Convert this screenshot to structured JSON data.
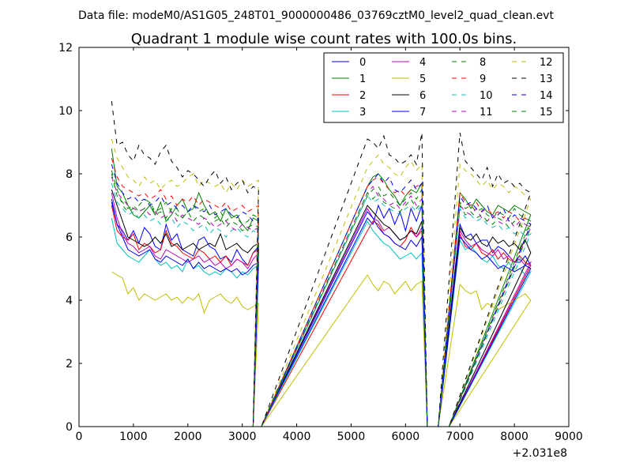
{
  "header": {
    "data_file": "Data file: modeM0/AS1G05_248T01_9000000486_03769cztM0_level2_quad_clean.evt"
  },
  "chart_data": {
    "type": "line",
    "title": "Quadrant 1 module wise count rates with 100.0s bins.",
    "xlabel": "",
    "ylabel": "",
    "x_offset_label": "+2.031e8",
    "xlim": [
      0,
      9000
    ],
    "ylim": [
      0,
      12
    ],
    "x_ticks": [
      0,
      1000,
      2000,
      3000,
      4000,
      5000,
      6000,
      7000,
      8000,
      9000
    ],
    "y_ticks": [
      0,
      2,
      4,
      6,
      8,
      10,
      12
    ],
    "grid": false,
    "legend_position": "top-right",
    "legend_columns": 4,
    "segments": [
      {
        "x_start": 600,
        "n": 28
      },
      {
        "x_start": 5300,
        "n": 11
      },
      {
        "x_start": 7000,
        "n": 14
      }
    ],
    "x_gaps": [
      [
        3200,
        3300,
        3350
      ],
      [
        6400,
        6500,
        6600
      ],
      [
        6800,
        6900
      ]
    ],
    "series": [
      {
        "name": "0",
        "color": "#0000ff",
        "dash": "solid",
        "seg1": [
          7.2,
          6.4,
          6.2,
          5.9,
          6.2,
          5.8,
          6.3,
          6.1,
          5.7,
          5.6,
          6.4,
          5.9,
          6.1,
          5.6,
          5.5,
          5.4,
          5.9,
          6.0,
          5.7,
          5.6,
          5.3,
          5.4,
          5.2,
          5.6,
          5.3,
          5.1,
          5.5,
          5.7
        ],
        "seg2": [
          6.6,
          6.4,
          7.0,
          6.6,
          6.9,
          6.4,
          6.8,
          6.2,
          6.9,
          6.5,
          7.0
        ],
        "seg3": [
          6.4,
          6.0,
          6.1,
          5.8,
          5.9,
          5.9,
          5.5,
          5.7,
          5.6,
          5.4,
          5.2,
          5.2,
          5.4,
          5.1
        ]
      },
      {
        "name": "1",
        "color": "#008000",
        "dash": "solid",
        "seg1": [
          8.8,
          7.6,
          7.4,
          7.0,
          6.7,
          6.6,
          6.8,
          7.0,
          6.7,
          7.1,
          6.5,
          6.7,
          7.0,
          7.2,
          6.8,
          6.9,
          7.4,
          7.0,
          6.7,
          6.8,
          6.5,
          6.9,
          6.6,
          6.7,
          6.4,
          6.2,
          6.6,
          6.5
        ],
        "seg2": [
          7.6,
          7.9,
          8.0,
          7.8,
          7.5,
          7.3,
          7.0,
          7.3,
          7.5,
          7.4,
          7.7
        ],
        "seg3": [
          7.4,
          7.2,
          6.9,
          7.2,
          7.0,
          6.8,
          6.7,
          7.0,
          6.9,
          6.8,
          7.0,
          6.9,
          6.8,
          6.7
        ]
      },
      {
        "name": "2",
        "color": "#ff0000",
        "dash": "solid",
        "seg1": [
          7.0,
          6.2,
          6.0,
          5.9,
          6.1,
          5.6,
          5.8,
          5.7,
          5.5,
          5.6,
          6.2,
          5.8,
          5.7,
          5.5,
          5.4,
          5.3,
          5.6,
          5.5,
          5.3,
          5.4,
          5.2,
          5.4,
          5.1,
          5.3,
          5.2,
          5.1,
          5.5,
          5.6
        ],
        "seg2": [
          6.2,
          6.5,
          6.4,
          6.1,
          6.0,
          5.8,
          5.7,
          5.9,
          6.3,
          6.0,
          6.2
        ],
        "seg3": [
          6.1,
          5.7,
          5.6,
          5.8,
          5.5,
          5.4,
          5.6,
          5.3,
          5.5,
          5.3,
          5.2,
          5.4,
          5.2,
          5.1
        ]
      },
      {
        "name": "3",
        "color": "#00bfbf",
        "dash": "solid",
        "seg1": [
          6.6,
          5.8,
          5.6,
          5.4,
          5.3,
          5.2,
          5.4,
          5.6,
          5.3,
          5.1,
          5.2,
          5.0,
          5.1,
          4.9,
          5.3,
          5.0,
          5.1,
          4.9,
          4.8,
          4.9,
          4.8,
          5.0,
          4.9,
          4.7,
          4.9,
          4.8,
          5.0,
          5.1
        ],
        "seg2": [
          6.5,
          6.2,
          6.0,
          5.8,
          5.7,
          5.5,
          5.3,
          5.4,
          5.5,
          5.3,
          5.5
        ],
        "seg3": [
          5.9,
          5.6,
          5.7,
          5.5,
          5.3,
          5.2,
          5.4,
          5.1,
          5.0,
          5.2,
          4.9,
          5.0,
          4.8,
          4.9
        ]
      },
      {
        "name": "4",
        "color": "#bf00bf",
        "dash": "solid",
        "seg1": [
          7.4,
          6.6,
          6.1,
          5.8,
          5.7,
          5.5,
          5.6,
          5.7,
          5.4,
          5.3,
          5.6,
          5.5,
          5.4,
          5.3,
          5.2,
          5.3,
          5.4,
          5.2,
          5.3,
          5.1,
          5.2,
          5.0,
          5.1,
          5.3,
          5.2,
          5.0,
          5.3,
          5.5
        ],
        "seg2": [
          6.9,
          6.6,
          6.5,
          6.2,
          6.3,
          6.1,
          5.9,
          6.0,
          6.2,
          6.0,
          6.3
        ],
        "seg3": [
          6.2,
          5.9,
          5.7,
          5.8,
          5.6,
          5.5,
          5.4,
          5.6,
          5.3,
          5.4,
          5.2,
          5.3,
          5.1,
          5.2
        ]
      },
      {
        "name": "5",
        "color": "#bfbf00",
        "dash": "solid",
        "seg1": [
          4.9,
          4.8,
          4.7,
          4.2,
          4.4,
          4.0,
          4.2,
          4.1,
          4.0,
          4.1,
          4.2,
          4.0,
          4.1,
          3.9,
          4.1,
          4.0,
          4.2,
          3.6,
          4.0,
          4.1,
          4.2,
          4.0,
          3.9,
          4.1,
          3.8,
          3.7,
          3.8,
          3.9
        ],
        "seg2": [
          4.8,
          4.5,
          4.3,
          4.6,
          4.5,
          4.2,
          4.4,
          4.6,
          4.3,
          4.5,
          4.6
        ],
        "seg3": [
          4.5,
          4.3,
          4.2,
          4.3,
          3.7,
          3.9,
          3.8,
          3.7,
          3.8,
          3.9,
          4.0,
          4.1,
          4.2,
          4.0
        ]
      },
      {
        "name": "6",
        "color": "#000000",
        "dash": "solid",
        "seg1": [
          7.5,
          7.0,
          6.5,
          6.0,
          5.9,
          5.8,
          5.7,
          5.8,
          6.0,
          5.8,
          6.1,
          5.7,
          5.8,
          5.6,
          5.7,
          5.8,
          5.6,
          5.7,
          5.8,
          5.7,
          6.1,
          5.6,
          5.7,
          5.8,
          5.6,
          5.5,
          5.7,
          5.8
        ],
        "seg2": [
          7.0,
          6.8,
          6.6,
          6.4,
          6.3,
          6.1,
          5.9,
          6.0,
          6.2,
          6.1,
          6.5
        ],
        "seg3": [
          6.3,
          6.0,
          5.9,
          6.1,
          5.8,
          5.7,
          6.0,
          5.8,
          5.9,
          5.7,
          5.8,
          5.6,
          5.9,
          5.5
        ]
      },
      {
        "name": "7",
        "color": "#0000ff",
        "dash": "solid",
        "seg1": [
          7.1,
          6.4,
          6.0,
          5.6,
          5.5,
          5.4,
          5.5,
          5.6,
          5.3,
          5.2,
          5.4,
          5.3,
          5.2,
          5.1,
          5.3,
          5.0,
          5.2,
          5.0,
          5.1,
          5.0,
          4.9,
          5.0,
          4.9,
          5.0,
          4.8,
          4.9,
          5.1,
          5.2
        ],
        "seg2": [
          6.8,
          6.6,
          6.3,
          6.1,
          6.0,
          5.8,
          5.7,
          5.6,
          5.9,
          5.7,
          6.0
        ],
        "seg3": [
          6.0,
          5.8,
          5.6,
          5.5,
          5.3,
          5.4,
          5.2,
          5.0,
          5.1,
          5.0,
          4.9,
          5.0,
          5.1,
          5.0
        ]
      },
      {
        "name": "8",
        "color": "#008000",
        "dash": "dashed",
        "seg1": [
          8.1,
          7.5,
          7.0,
          6.8,
          6.9,
          7.0,
          7.2,
          7.1,
          6.8,
          6.9,
          7.1,
          6.8,
          6.9,
          6.6,
          6.8,
          7.0,
          6.8,
          6.9,
          6.7,
          6.6,
          6.8,
          6.5,
          6.7,
          6.6,
          6.4,
          6.5,
          6.7,
          6.6
        ],
        "seg2": [
          7.3,
          7.5,
          7.6,
          7.3,
          7.4,
          7.2,
          7.0,
          7.2,
          7.4,
          7.2,
          7.5
        ],
        "seg3": [
          7.1,
          6.9,
          7.0,
          6.8,
          6.9,
          6.7,
          6.6,
          6.8,
          6.7,
          6.6,
          6.9,
          6.7,
          6.6,
          6.5
        ]
      },
      {
        "name": "9",
        "color": "#ff0000",
        "dash": "dashed",
        "seg1": [
          8.5,
          7.9,
          7.6,
          7.5,
          7.4,
          7.3,
          7.4,
          7.2,
          7.3,
          7.5,
          7.2,
          7.3,
          7.0,
          7.2,
          7.1,
          7.3,
          7.0,
          7.2,
          7.1,
          7.0,
          6.9,
          7.1,
          6.8,
          6.9,
          7.0,
          6.8,
          6.9,
          7.0
        ],
        "seg2": [
          7.6,
          7.8,
          7.9,
          7.7,
          7.5,
          7.4,
          7.5,
          7.3,
          7.5,
          7.6,
          7.7
        ],
        "seg3": [
          7.4,
          7.1,
          7.0,
          7.1,
          6.8,
          6.9,
          6.7,
          6.8,
          6.6,
          6.8,
          6.7,
          6.5,
          6.6,
          6.4
        ]
      },
      {
        "name": "10",
        "color": "#00bfbf",
        "dash": "dashed",
        "seg1": [
          7.7,
          7.1,
          6.9,
          6.7,
          6.8,
          6.6,
          6.7,
          6.5,
          6.6,
          6.4,
          6.5,
          6.6,
          6.3,
          6.5,
          6.4,
          6.2,
          6.3,
          6.4,
          6.1,
          6.3,
          6.2,
          6.0,
          6.2,
          6.3,
          6.1,
          6.0,
          6.2,
          6.1
        ],
        "seg2": [
          7.3,
          7.1,
          7.2,
          7.0,
          6.9,
          6.8,
          6.7,
          6.9,
          7.0,
          6.8,
          7.0
        ],
        "seg3": [
          6.9,
          6.6,
          6.7,
          6.5,
          6.6,
          6.4,
          6.3,
          6.4,
          6.2,
          6.3,
          6.1,
          6.2,
          6.0,
          6.1
        ]
      },
      {
        "name": "11",
        "color": "#bf00bf",
        "dash": "dashed",
        "seg1": [
          7.9,
          7.4,
          7.2,
          7.0,
          6.9,
          6.8,
          6.9,
          6.7,
          6.8,
          6.6,
          6.7,
          6.8,
          6.5,
          6.7,
          6.6,
          6.5,
          6.4,
          6.6,
          6.5,
          6.3,
          6.4,
          6.5,
          6.3,
          6.2,
          6.4,
          6.3,
          6.2,
          6.3
        ],
        "seg2": [
          7.4,
          7.6,
          7.3,
          7.2,
          7.0,
          7.1,
          6.9,
          7.1,
          7.3,
          7.0,
          7.2
        ],
        "seg3": [
          7.0,
          6.8,
          6.7,
          6.9,
          6.6,
          6.5,
          6.7,
          6.5,
          6.4,
          6.6,
          6.3,
          6.5,
          6.4,
          6.3
        ]
      },
      {
        "name": "12",
        "color": "#bfbf00",
        "dash": "dashed",
        "seg1": [
          9.1,
          8.5,
          8.2,
          7.9,
          7.8,
          7.6,
          7.9,
          7.7,
          7.8,
          7.5,
          7.7,
          7.8,
          7.6,
          7.7,
          7.9,
          8.0,
          7.6,
          7.8,
          7.7,
          7.6,
          7.7,
          7.4,
          7.7,
          7.5,
          7.8,
          7.6,
          7.7,
          7.8
        ],
        "seg2": [
          8.2,
          8.4,
          8.6,
          8.3,
          8.2,
          8.0,
          7.9,
          8.2,
          8.4,
          8.1,
          8.3
        ],
        "seg3": [
          8.3,
          8.1,
          8.0,
          7.8,
          7.6,
          7.8,
          7.5,
          7.7,
          7.6,
          7.4,
          7.6,
          7.5,
          7.3,
          7.2
        ]
      },
      {
        "name": "13",
        "color": "#000000",
        "dash": "dashed",
        "seg1": [
          10.3,
          8.9,
          9.0,
          8.6,
          8.4,
          8.9,
          8.6,
          8.5,
          8.3,
          8.7,
          8.9,
          8.4,
          8.2,
          7.9,
          8.1,
          8.0,
          7.8,
          7.6,
          7.9,
          8.1,
          7.7,
          7.9,
          7.5,
          7.7,
          7.8,
          7.4,
          7.6,
          7.5
        ],
        "seg2": [
          9.1,
          9.0,
          8.8,
          9.2,
          8.6,
          8.5,
          8.3,
          8.4,
          8.6,
          8.3,
          9.3
        ],
        "seg3": [
          9.3,
          8.4,
          8.2,
          8.0,
          7.8,
          8.2,
          7.6,
          8.0,
          7.7,
          7.8,
          7.6,
          7.7,
          7.5,
          7.4
        ]
      },
      {
        "name": "14",
        "color": "#0000ff",
        "dash": "dashed",
        "seg1": [
          8.3,
          7.7,
          7.4,
          7.2,
          7.3,
          7.1,
          7.2,
          7.0,
          7.1,
          7.3,
          7.0,
          7.1,
          6.9,
          7.0,
          6.8,
          7.0,
          6.9,
          6.8,
          7.0,
          6.7,
          6.8,
          6.9,
          6.7,
          6.6,
          6.8,
          6.7,
          6.5,
          6.6
        ],
        "seg2": [
          7.6,
          7.8,
          8.0,
          7.7,
          7.9,
          7.5,
          7.4,
          7.6,
          7.8,
          7.5,
          7.7
        ],
        "seg3": [
          7.3,
          7.0,
          7.1,
          6.9,
          6.8,
          7.0,
          6.6,
          6.7,
          6.9,
          6.5,
          6.7,
          6.6,
          6.5,
          6.4
        ]
      },
      {
        "name": "15",
        "color": "#008000",
        "dash": "dashed",
        "seg1": [
          8.0,
          7.3,
          7.1,
          6.9,
          7.0,
          6.8,
          6.9,
          7.1,
          6.7,
          6.8,
          6.6,
          6.9,
          6.7,
          6.6,
          6.8,
          6.5,
          6.7,
          6.6,
          6.4,
          6.5,
          6.6,
          6.3,
          6.5,
          6.4,
          6.2,
          6.3,
          6.4,
          6.3
        ],
        "seg2": [
          7.4,
          7.2,
          7.4,
          7.1,
          7.0,
          6.9,
          6.8,
          7.0,
          7.2,
          6.9,
          7.1
        ],
        "seg3": [
          7.0,
          6.7,
          6.8,
          6.6,
          6.7,
          6.5,
          6.4,
          6.6,
          6.5,
          6.3,
          6.5,
          6.4,
          6.2,
          6.3
        ]
      }
    ]
  }
}
